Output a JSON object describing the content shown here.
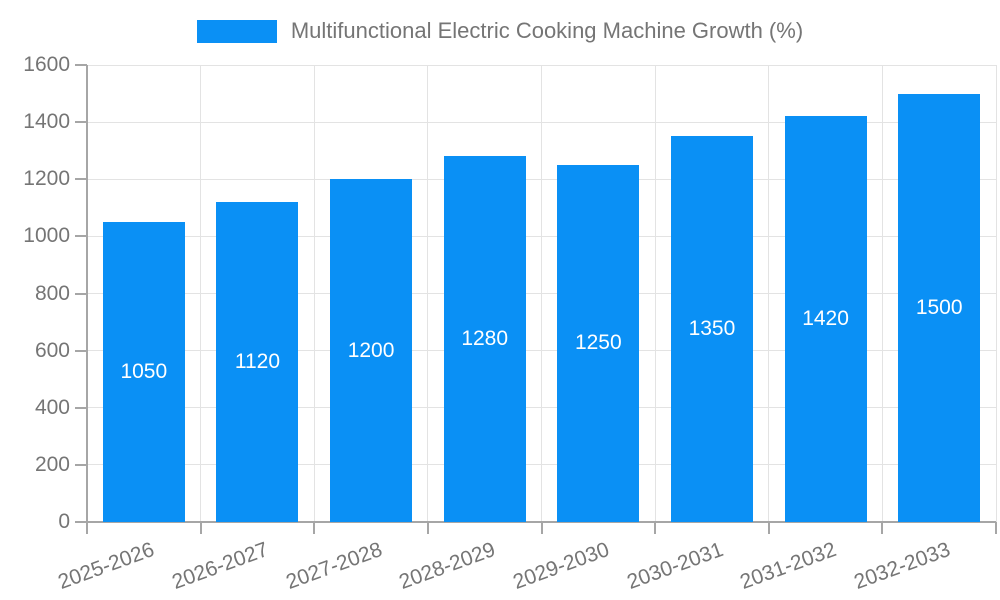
{
  "legend": {
    "items": [
      {
        "label": "Multifunctional Electric Cooking Machine Growth (%)",
        "color": "#0A90F5"
      }
    ]
  },
  "chart_data": {
    "type": "bar",
    "title": "Multifunctional Electric Cooking Machine Growth (%)",
    "categories": [
      "2025-2026",
      "2026-2027",
      "2027-2028",
      "2028-2029",
      "2029-2030",
      "2030-2031",
      "2031-2032",
      "2032-2033"
    ],
    "values": [
      1050,
      1120,
      1200,
      1280,
      1250,
      1350,
      1420,
      1500
    ],
    "xlabel": "",
    "ylabel": "",
    "ylim": [
      0,
      1600
    ],
    "yticks": [
      0,
      200,
      400,
      600,
      800,
      1000,
      1200,
      1400,
      1600
    ],
    "grid": true,
    "legend_position": "top-center",
    "bar_label_position": "inside-middle",
    "x_label_rotation_deg": -20,
    "colors": {
      "bar": "#0A90F5",
      "grid": "#E3E3E3",
      "axis": "#A6A6A6",
      "tick_label": "#757575",
      "bar_label": "#FFFFFF",
      "background": "#FFFFFF"
    }
  }
}
